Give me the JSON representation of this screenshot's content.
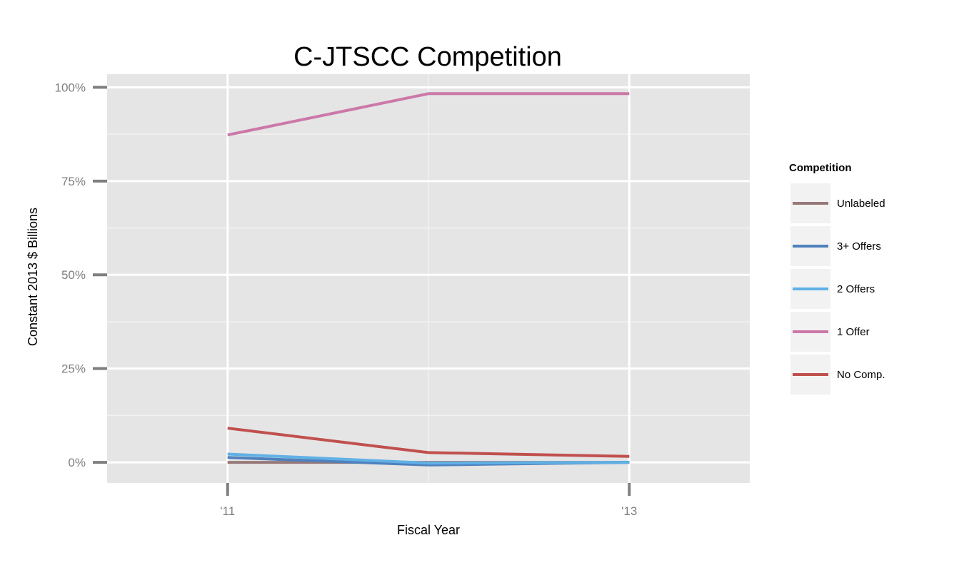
{
  "chart_data": {
    "type": "line",
    "title": "C-JTSCC Competition",
    "xlabel": "Fiscal Year",
    "ylabel": "Constant 2013 $ Billions",
    "x": [
      2011,
      2012,
      2013
    ],
    "xlim": [
      2010.4,
      2013.6
    ],
    "ylim": [
      -0.055,
      1.035
    ],
    "x_ticks": [
      {
        "value": 2011,
        "label": "'11"
      },
      {
        "value": 2013,
        "label": "'13"
      }
    ],
    "y_ticks": [
      {
        "value": 0,
        "label": "0%"
      },
      {
        "value": 0.25,
        "label": "25%"
      },
      {
        "value": 0.5,
        "label": "50%"
      },
      {
        "value": 0.75,
        "label": "75%"
      },
      {
        "value": 1.0,
        "label": "100%"
      }
    ],
    "y_minor_ticks": [
      0.125,
      0.375,
      0.625,
      0.875
    ],
    "x_minor_ticks": [
      2012
    ],
    "grid": true,
    "legend": {
      "title": "Competition",
      "placement": "right"
    },
    "series": [
      {
        "name": "Unlabeled",
        "color": "#967878",
        "values": [
          0.0,
          0.0,
          0.0
        ]
      },
      {
        "name": "3+ Offers",
        "color": "#4f81bd",
        "values": [
          0.013,
          -0.007,
          0.0
        ]
      },
      {
        "name": "2 Offers",
        "color": "#60b0e6",
        "values": [
          0.022,
          -0.002,
          0.0
        ]
      },
      {
        "name": "1 Offer",
        "color": "#cc78a8",
        "values": [
          0.873,
          0.983,
          0.983
        ]
      },
      {
        "name": "No Comp.",
        "color": "#c0504d",
        "values": [
          0.091,
          0.026,
          0.016
        ]
      }
    ]
  }
}
